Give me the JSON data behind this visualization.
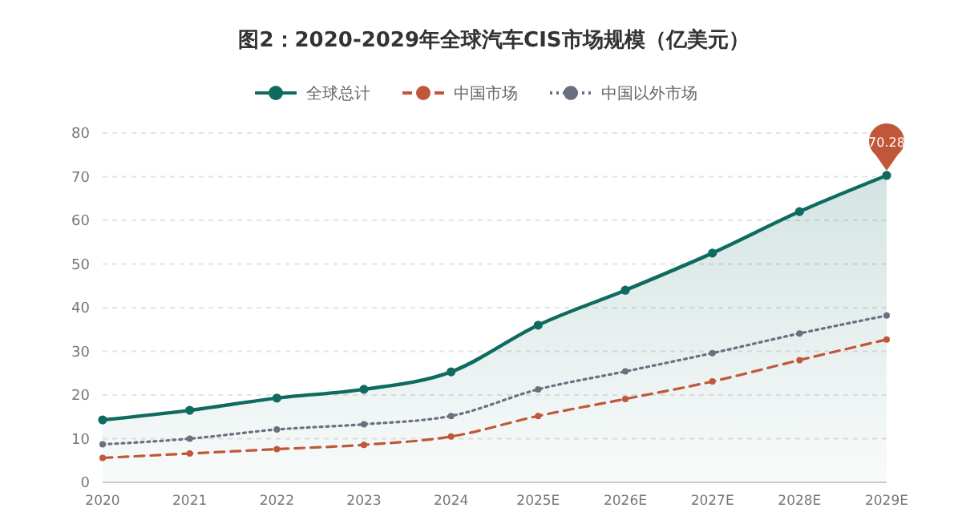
{
  "chart_data": {
    "type": "line",
    "title": "图2：2020-2029年全球汽车CIS市场规模（亿美元）",
    "categories": [
      "2020",
      "2021",
      "2022",
      "2023",
      "2024",
      "2025E",
      "2026E",
      "2027E",
      "2028E",
      "2029E"
    ],
    "series": [
      {
        "name": "全球总计",
        "type": "area",
        "color": "#0f6b5f",
        "line_style": "solid",
        "values": [
          14.3,
          16.5,
          19.3,
          21.3,
          25.3,
          36,
          44,
          52.5,
          62,
          70.28
        ],
        "value_labels": [
          null,
          null,
          null,
          null,
          null,
          null,
          null,
          null,
          null,
          "70.28"
        ]
      },
      {
        "name": "中国市场",
        "color": "#c0573a",
        "line_style": "dashed",
        "values": [
          5.6,
          6.6,
          7.6,
          8.6,
          10.5,
          15.2,
          19.1,
          23.1,
          28,
          32.7
        ]
      },
      {
        "name": "中国以外市场",
        "color": "#6c6f80",
        "line_style": "dotted",
        "values": [
          8.7,
          10,
          12.1,
          13.3,
          15.2,
          21.3,
          25.4,
          29.6,
          34.1,
          38.2
        ]
      }
    ],
    "ylim": [
      0,
      80
    ],
    "yticks": [
      0,
      10,
      20,
      30,
      40,
      50,
      60,
      70,
      80
    ],
    "grid": "y",
    "legend": "top",
    "marker": "circle"
  }
}
